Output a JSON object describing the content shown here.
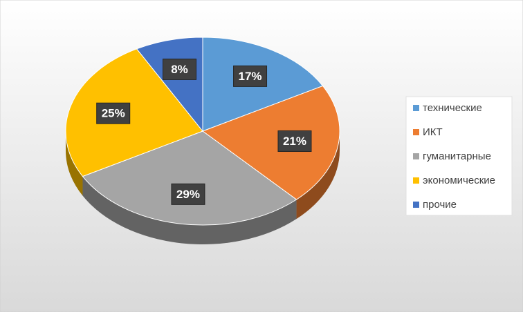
{
  "chart_data": {
    "type": "pie",
    "categories": [
      "технические",
      "ИКТ",
      "гуманитарные",
      "экономические",
      "прочие"
    ],
    "values": [
      17,
      21,
      29,
      25,
      8
    ],
    "value_labels": [
      "17%",
      "21%",
      "29%",
      "25%",
      "8%"
    ],
    "colors": [
      "#5b9bd5",
      "#ed7d31",
      "#a5a5a5",
      "#ffc000",
      "#4472c4"
    ],
    "legend": "right"
  }
}
